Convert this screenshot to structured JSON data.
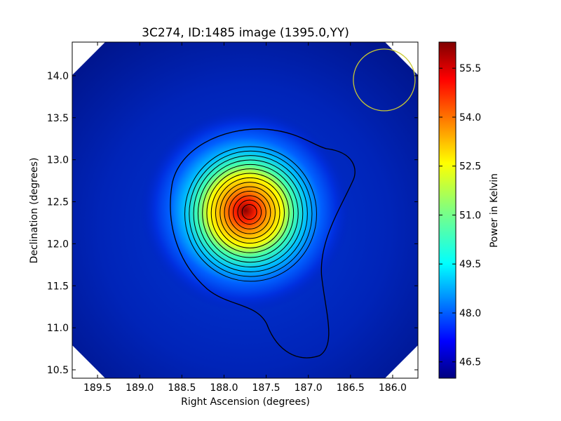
{
  "chart_data": {
    "type": "heatmap",
    "title": "3C274, ID:1485 image (1395.0,YY)",
    "xlabel": "Right Ascension (degrees)",
    "ylabel": "Declination (degrees)",
    "colorbar_label": "Power in Kelvin",
    "xlim": [
      189.8,
      185.7
    ],
    "ylim": [
      10.4,
      14.4
    ],
    "x_inverted": true,
    "x_ticks": [
      189.5,
      189.0,
      188.5,
      188.0,
      187.5,
      187.0,
      186.5,
      186.0
    ],
    "x_tick_labels": [
      "189.5",
      "189.0",
      "188.5",
      "188.0",
      "187.5",
      "187.0",
      "186.5",
      "186.0"
    ],
    "y_ticks": [
      10.5,
      11.0,
      11.5,
      12.0,
      12.5,
      13.0,
      13.5,
      14.0
    ],
    "y_tick_labels": [
      "10.5",
      "11.0",
      "11.5",
      "12.0",
      "12.5",
      "13.0",
      "13.5",
      "14.0"
    ],
    "colorbar": {
      "colormap": "jet",
      "vmin": 46.0,
      "vmax": 56.3,
      "ticks": [
        46.5,
        48.0,
        49.5,
        51.0,
        52.5,
        54.0,
        55.5
      ],
      "tick_labels": [
        "46.5",
        "48.0",
        "49.5",
        "51.0",
        "52.5",
        "54.0",
        "55.5"
      ]
    },
    "source": {
      "ra": 187.7,
      "dec": 12.38,
      "peak": 56.0,
      "background": 46.8
    },
    "contour_levels": 14,
    "beam_circle": {
      "ra": 186.1,
      "dec": 13.95,
      "color": "#c8c832"
    },
    "grid": false,
    "colors": {
      "background": "#ffffff",
      "axes_edge": "#000000",
      "contour": "#000000"
    }
  }
}
